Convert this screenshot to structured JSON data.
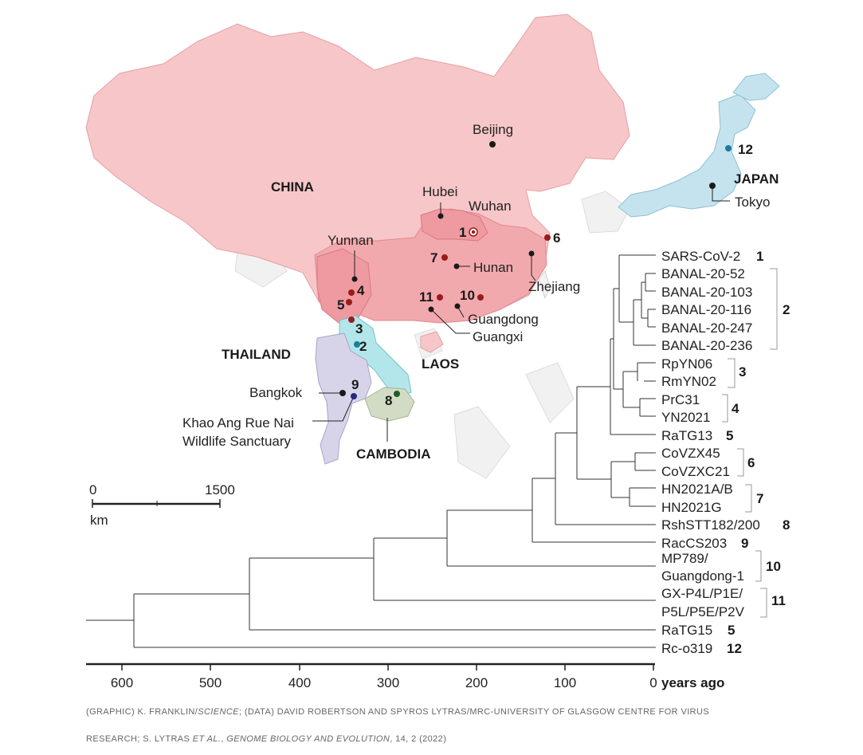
{
  "map": {
    "countries": {
      "china": "CHINA",
      "japan": "JAPAN",
      "thailand": "THAILAND",
      "laos": "LAOS",
      "cambodia": "CAMBODIA"
    },
    "places": {
      "beijing": "Beijing",
      "hubei": "Hubei",
      "wuhan": "Wuhan",
      "yunnan": "Yunnan",
      "hunan": "Hunan",
      "zhejiang": "Zhejiang",
      "guangdong": "Guangdong",
      "guangxi": "Guangxi",
      "tokyo": "Tokyo",
      "bangkok": "Bangkok",
      "khao_line1": "Khao Ang Rue Nai",
      "khao_line2": "Wildlife Sanctuary"
    },
    "site_numbers": [
      "1",
      "2",
      "3",
      "4",
      "5",
      "6",
      "7",
      "8",
      "9",
      "10",
      "11",
      "12"
    ],
    "scale": {
      "min": "0",
      "max": "1500",
      "unit": "km"
    },
    "colors": {
      "china": "#f7c6c8",
      "china_south": "#f2a9ad",
      "japan": "#c5e3ee",
      "laos": "#b3e6ea",
      "thailand": "#d7d4ea",
      "cambodia": "#d2dcc4",
      "dot_red": "#9b1a1a",
      "dot_teal": "#1e7c9a",
      "dot_navy": "#2a2a7a",
      "dot_green": "#1e5a2a"
    }
  },
  "tree": {
    "leaves": [
      {
        "label": "SARS-CoV-2",
        "group": "1"
      },
      {
        "label": "BANAL-20-52",
        "group": ""
      },
      {
        "label": "BANAL-20-103",
        "group": ""
      },
      {
        "label": "BANAL-20-116",
        "group": "2"
      },
      {
        "label": "BANAL-20-247",
        "group": ""
      },
      {
        "label": "BANAL-20-236",
        "group": ""
      },
      {
        "label": "RpYN06",
        "group": "3"
      },
      {
        "label": "RmYN02",
        "group": ""
      },
      {
        "label": "PrC31",
        "group": "4"
      },
      {
        "label": "YN2021",
        "group": ""
      },
      {
        "label": "RaTG13",
        "group": "5"
      },
      {
        "label": "CoVZX45",
        "group": "6"
      },
      {
        "label": "CoVZXC21",
        "group": ""
      },
      {
        "label": "HN2021A/B",
        "group": "7"
      },
      {
        "label": "HN2021G",
        "group": ""
      },
      {
        "label": "RshSTT182/200",
        "group": "8"
      },
      {
        "label": "RacCS203",
        "group": "9"
      },
      {
        "label": "MP789/",
        "group": "10"
      },
      {
        "label": "Guangdong-1",
        "group": ""
      },
      {
        "label": "GX-P4L/P1E/",
        "group": "11"
      },
      {
        "label": "P5L/P5E/P2V",
        "group": ""
      },
      {
        "label": "RaTG15",
        "group": "5"
      },
      {
        "label": "Rc-o319",
        "group": "12"
      }
    ],
    "axis": {
      "ticks": [
        "600",
        "500",
        "400",
        "300",
        "200",
        "100",
        "0"
      ],
      "title": "years ago"
    }
  },
  "credit": {
    "line1_a": "(GRAPHIC) K. FRANKLIN/",
    "line1_b": "SCIENCE",
    "line1_c": "; (DATA) DAVID ROBERTSON AND SPYROS LYTRAS/MRC-UNIVERSITY OF GLASGOW CENTRE FOR VIRUS",
    "line2_a": "RESEARCH; S. LYTRAS ",
    "line2_b": "ET AL.",
    "line2_c": ", ",
    "line2_d": "GENOME BIOLOGY AND EVOLUTION",
    "line2_e": ", 14, 2 (2022)"
  }
}
